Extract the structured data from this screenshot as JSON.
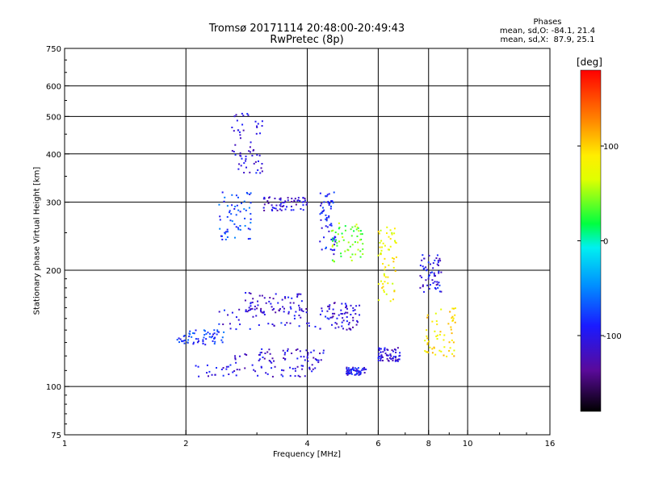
{
  "header": {
    "title_line1": "Tromsø 20171114 20:48:00-20:49:43",
    "title_line2": "RwPretec (8p)"
  },
  "phase_info": {
    "heading": "Phases",
    "line_o": "mean, sd,O: -84.1, 21.4",
    "line_x": "mean, sd,X:  87.9, 25.1"
  },
  "colorbar": {
    "label": "[deg]",
    "ticks": [
      "100",
      "0",
      "-100"
    ],
    "tick_values": [
      100,
      0,
      -100
    ],
    "range": [
      -180,
      180
    ]
  },
  "chart_data": {
    "type": "scatter",
    "title": "Tromsø 20171114 20:48:00-20:49:43",
    "subtitle": "RwPretec (8p)",
    "xlabel": "Frequency [MHz]",
    "ylabel": "Stationary phase Virtual Height [km]",
    "x_scale": "log",
    "y_scale": "log",
    "xlim": [
      1,
      16
    ],
    "ylim": [
      75,
      750
    ],
    "x_ticks": [
      1,
      2,
      4,
      6,
      8,
      10,
      16
    ],
    "x_tick_labels": [
      "1",
      "2",
      "4",
      "6",
      "8",
      "10",
      "16"
    ],
    "x_grid": [
      2,
      4,
      6,
      8,
      10
    ],
    "y_ticks": [
      75,
      100,
      200,
      300,
      400,
      500,
      600,
      750
    ],
    "y_tick_labels": [
      "75",
      "100",
      "200",
      "300",
      "400",
      "500",
      "600",
      "750"
    ],
    "y_grid": [
      100,
      200,
      300,
      400,
      500,
      600
    ],
    "color_by": "phase [deg]",
    "clusters": [
      {
        "f_min": 2.05,
        "f_max": 4.2,
        "h_min": 106,
        "h_max": 114,
        "phase": -105
      },
      {
        "f_min": 2.6,
        "f_max": 4.4,
        "h_min": 115,
        "h_max": 125,
        "phase": -110
      },
      {
        "f_min": 1.9,
        "f_max": 2.5,
        "h_min": 128,
        "h_max": 140,
        "phase": -80
      },
      {
        "f_min": 2.4,
        "f_max": 4.6,
        "h_min": 140,
        "h_max": 160,
        "phase": -100
      },
      {
        "f_min": 2.8,
        "f_max": 4.0,
        "h_min": 155,
        "h_max": 175,
        "phase": -110
      },
      {
        "f_min": 2.4,
        "f_max": 2.9,
        "h_min": 240,
        "h_max": 320,
        "phase": -75
      },
      {
        "f_min": 2.6,
        "f_max": 3.1,
        "h_min": 350,
        "h_max": 510,
        "phase": -105
      },
      {
        "f_min": 3.1,
        "f_max": 4.0,
        "h_min": 285,
        "h_max": 310,
        "phase": -110
      },
      {
        "f_min": 4.5,
        "f_max": 5.4,
        "h_min": 140,
        "h_max": 165,
        "phase": -110
      },
      {
        "f_min": 4.6,
        "f_max": 5.5,
        "h_min": 210,
        "h_max": 265,
        "phase": 40
      },
      {
        "f_min": 4.3,
        "f_max": 4.7,
        "h_min": 220,
        "h_max": 320,
        "phase": -90
      },
      {
        "f_min": 5.0,
        "f_max": 5.6,
        "h_min": 107,
        "h_max": 112,
        "phase": -100
      },
      {
        "f_min": 6.0,
        "f_max": 6.7,
        "h_min": 165,
        "h_max": 260,
        "phase": 80
      },
      {
        "f_min": 6.0,
        "f_max": 6.8,
        "h_min": 116,
        "h_max": 126,
        "phase": -110
      },
      {
        "f_min": 7.8,
        "f_max": 9.4,
        "h_min": 118,
        "h_max": 160,
        "phase": 90
      },
      {
        "f_min": 7.6,
        "f_max": 8.6,
        "h_min": 175,
        "h_max": 220,
        "phase": -100
      }
    ]
  }
}
